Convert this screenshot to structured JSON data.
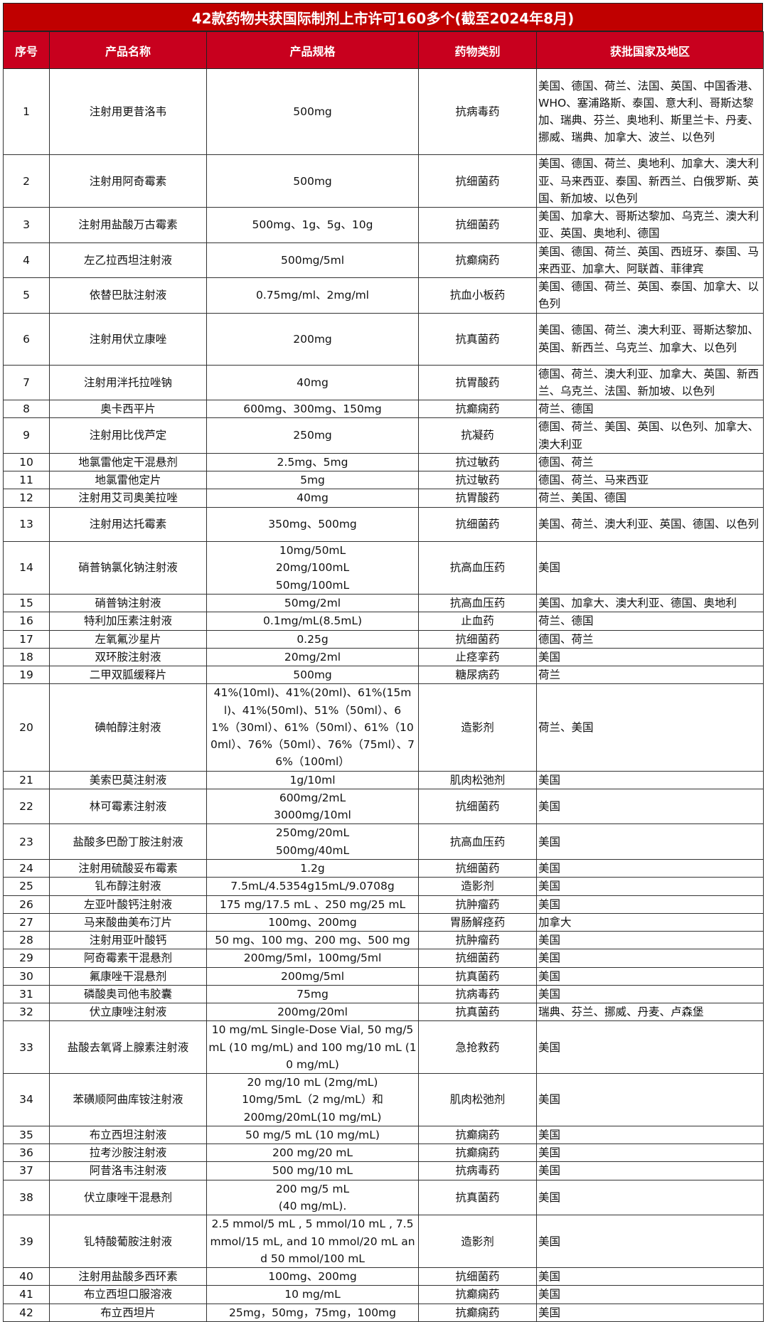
{
  "title": "42款药物共获国际制剂上市许可160多个(截至2024年8月)",
  "colors": {
    "title_bg": "#c00000",
    "header_bg": "#c8001e",
    "text": "#111111"
  },
  "headers": [
    "序号",
    "产品名称",
    "产品规格",
    "药物类别",
    "获批国家及地区"
  ],
  "rows": [
    {
      "no": "1",
      "name": "注射用更昔洛韦",
      "spec": "500mg",
      "category": "抗病毒药",
      "countries": "美国、德国、荷兰、法国、英国、中国香港、WHO、塞浦路斯、泰国、意大利、哥斯达黎加、瑞典、芬兰、奥地利、斯里兰卡、丹麦、挪威、瑞典、加拿大、波兰、以色列"
    },
    {
      "no": "2",
      "name": "注射用阿奇霉素",
      "spec": "500mg",
      "category": "抗细菌药",
      "countries": "美国、德国、荷兰、奥地利、加拿大、澳大利亚、马来西亚、泰国、新西兰、白俄罗斯、英国、新加坡、以色列"
    },
    {
      "no": "3",
      "name": "注射用盐酸万古霉素",
      "spec": "500mg、1g、5g、10g",
      "category": "抗细菌药",
      "countries": "美国、加拿大、哥斯达黎加、乌克兰、澳大利亚、英国、奥地利、德国"
    },
    {
      "no": "4",
      "name": "左乙拉西坦注射液",
      "spec": "500mg/5ml",
      "category": "抗癫痫药",
      "countries": "美国、德国、荷兰、英国、西班牙、泰国、马来西亚、加拿大、阿联酋、菲律宾"
    },
    {
      "no": "5",
      "name": "依替巴肽注射液",
      "spec": "0.75mg/ml、2mg/ml",
      "category": "抗血小板药",
      "countries": "美国、德国、荷兰、英国、泰国、加拿大、以色列"
    },
    {
      "no": "6",
      "name": "注射用伏立康唑",
      "spec": "200mg",
      "category": "抗真菌药",
      "countries": "美国、德国、荷兰、澳大利亚、哥斯达黎加、英国、新西兰、乌克兰、加拿大、以色列"
    },
    {
      "no": "7",
      "name": "注射用泮托拉唑钠",
      "spec": "40mg",
      "category": "抗胃酸药",
      "countries": "德国、荷兰、澳大利亚、加拿大、英国、新西兰、乌克兰、法国、新加坡、以色列"
    },
    {
      "no": "8",
      "name": "奥卡西平片",
      "spec": "600mg、300mg、150mg",
      "category": "抗癫痫药",
      "countries": "荷兰、德国"
    },
    {
      "no": "9",
      "name": "注射用比伐芦定",
      "spec": "250mg",
      "category": "抗凝药",
      "countries": "德国、荷兰、美国、英国、以色列、加拿大、澳大利亚"
    },
    {
      "no": "10",
      "name": "地氯雷他定干混悬剂",
      "spec": "2.5mg、5mg",
      "category": "抗过敏药",
      "countries": "德国、荷兰"
    },
    {
      "no": "11",
      "name": "地氯雷他定片",
      "spec": "5mg",
      "category": "抗过敏药",
      "countries": "德国、荷兰、马来西亚"
    },
    {
      "no": "12",
      "name": "注射用艾司奥美拉唑",
      "spec": "40mg",
      "category": "抗胃酸药",
      "countries": "荷兰、美国、德国"
    },
    {
      "no": "13",
      "name": "注射用达托霉素",
      "spec": "350mg、500mg",
      "category": "抗细菌药",
      "countries": "美国、荷兰、澳大利亚、英国、德国、以色列"
    },
    {
      "no": "14",
      "name": "硝普钠氯化钠注射液",
      "spec": "10mg/50mL\n20mg/100mL\n50mg/100mL",
      "category": "抗高血压药",
      "countries": "美国"
    },
    {
      "no": "15",
      "name": "硝普钠注射液",
      "spec": "50mg/2ml",
      "category": "抗高血压药",
      "countries": "美国、加拿大、澳大利亚、德国、奥地利"
    },
    {
      "no": "16",
      "name": "特利加压素注射液",
      "spec": "0.1mg/mL(8.5mL)",
      "category": "止血药",
      "countries": "荷兰、德国"
    },
    {
      "no": "17",
      "name": "左氧氟沙星片",
      "spec": "0.25g",
      "category": "抗细菌药",
      "countries": "德国、荷兰"
    },
    {
      "no": "18",
      "name": "双环胺注射液",
      "spec": "20mg/2ml",
      "category": "止痉挛药",
      "countries": "美国"
    },
    {
      "no": "19",
      "name": "二甲双胍缓释片",
      "spec": "500mg",
      "category": "糖尿病药",
      "countries": "荷兰"
    },
    {
      "no": "20",
      "name": "碘帕醇注射液",
      "spec": "41%(10ml)、41%(20ml)、61%(15ml)、41%(50ml)、51%（50ml）、61%（30ml）、61%（50ml）、61%（100ml）、76%（50ml）、76%（75ml）、76%（100ml）",
      "category": "造影剂",
      "countries": "荷兰、美国"
    },
    {
      "no": "21",
      "name": "美索巴莫注射液",
      "spec": "1g/10ml",
      "category": "肌肉松弛剂",
      "countries": "美国"
    },
    {
      "no": "22",
      "name": "林可霉素注射液",
      "spec": "600mg/2mL\n3000mg/10ml",
      "category": "抗细菌药",
      "countries": "美国"
    },
    {
      "no": "23",
      "name": "盐酸多巴酚丁胺注射液",
      "spec": "250mg/20mL\n500mg/40mL",
      "category": "抗高血压药",
      "countries": "美国"
    },
    {
      "no": "24",
      "name": "注射用硫酸妥布霉素",
      "spec": "1.2g",
      "category": "抗细菌药",
      "countries": "美国"
    },
    {
      "no": "25",
      "name": "钆布醇注射液",
      "spec": "7.5mL/4.5354g15mL/9.0708g",
      "category": "造影剂",
      "countries": "美国"
    },
    {
      "no": "26",
      "name": "左亚叶酸钙注射液",
      "spec": "175 mg/17.5 mL 、250 mg/25 mL",
      "category": "抗肿瘤药",
      "countries": "美国"
    },
    {
      "no": "27",
      "name": "马来酸曲美布汀片",
      "spec": "100mg、200mg",
      "category": "胃肠解痉药",
      "countries": "加拿大"
    },
    {
      "no": "28",
      "name": "注射用亚叶酸钙",
      "spec": "50 mg、100 mg、200 mg、500 mg",
      "category": "抗肿瘤药",
      "countries": "美国"
    },
    {
      "no": "29",
      "name": "阿奇霉素干混悬剂",
      "spec": "200mg/5ml，100mg/5ml",
      "category": "抗细菌药",
      "countries": "美国"
    },
    {
      "no": "30",
      "name": "氟康唑干混悬剂",
      "spec": "200mg/5ml",
      "category": "抗真菌药",
      "countries": "美国"
    },
    {
      "no": "31",
      "name": "磷酸奥司他韦胶囊",
      "spec": "75mg",
      "category": "抗病毒药",
      "countries": "美国"
    },
    {
      "no": "32",
      "name": "伏立康唑注射液",
      "spec": "200mg/20ml",
      "category": "抗真菌药",
      "countries": "瑞典、芬兰、挪威、丹麦、卢森堡"
    },
    {
      "no": "33",
      "name": "盐酸去氧肾上腺素注射液",
      "spec": "10 mg/mL Single-Dose Vial, 50 mg/5 mL (10 mg/mL) and 100 mg/10 mL (10 mg/mL)",
      "category": "急抢救药",
      "countries": "美国"
    },
    {
      "no": "34",
      "name": "苯磺顺阿曲库铵注射液",
      "spec": "20 mg/10 mL (2mg/mL)\n10mg/5mL（2 mg/mL）和\n200mg/20mL(10 mg/mL)",
      "category": "肌肉松弛剂",
      "countries": "美国"
    },
    {
      "no": "35",
      "name": "布立西坦注射液",
      "spec": "50 mg/5 mL (10 mg/mL)",
      "category": "抗癫痫药",
      "countries": "美国"
    },
    {
      "no": "36",
      "name": "拉考沙胺注射液",
      "spec": "200 mg/20 mL",
      "category": "抗癫痫药",
      "countries": "美国"
    },
    {
      "no": "37",
      "name": "阿昔洛韦注射液",
      "spec": "500 mg/10 mL",
      "category": "抗病毒药",
      "countries": "美国"
    },
    {
      "no": "38",
      "name": "伏立康唑干混悬剂",
      "spec": "200 mg/5 mL\n(40 mg/mL).",
      "category": "抗真菌药",
      "countries": "美国"
    },
    {
      "no": "39",
      "name": "钆特酸葡胺注射液",
      "spec": "2.5 mmol/5 mL , 5 mmol/10 mL , 7.5 mmol/15 mL, and 10 mmol/20 mL and 50 mmol/100 mL",
      "category": "造影剂",
      "countries": "美国"
    },
    {
      "no": "40",
      "name": "注射用盐酸多西环素",
      "spec": "100mg、200mg",
      "category": "抗细菌药",
      "countries": "美国"
    },
    {
      "no": "41",
      "name": "布立西坦口服溶液",
      "spec": "10 mg/mL",
      "category": "抗癫痫药",
      "countries": "美国"
    },
    {
      "no": "42",
      "name": "布立西坦片",
      "spec": "25mg，50mg，75mg，100mg",
      "category": "抗癫痫药",
      "countries": "美国"
    }
  ]
}
